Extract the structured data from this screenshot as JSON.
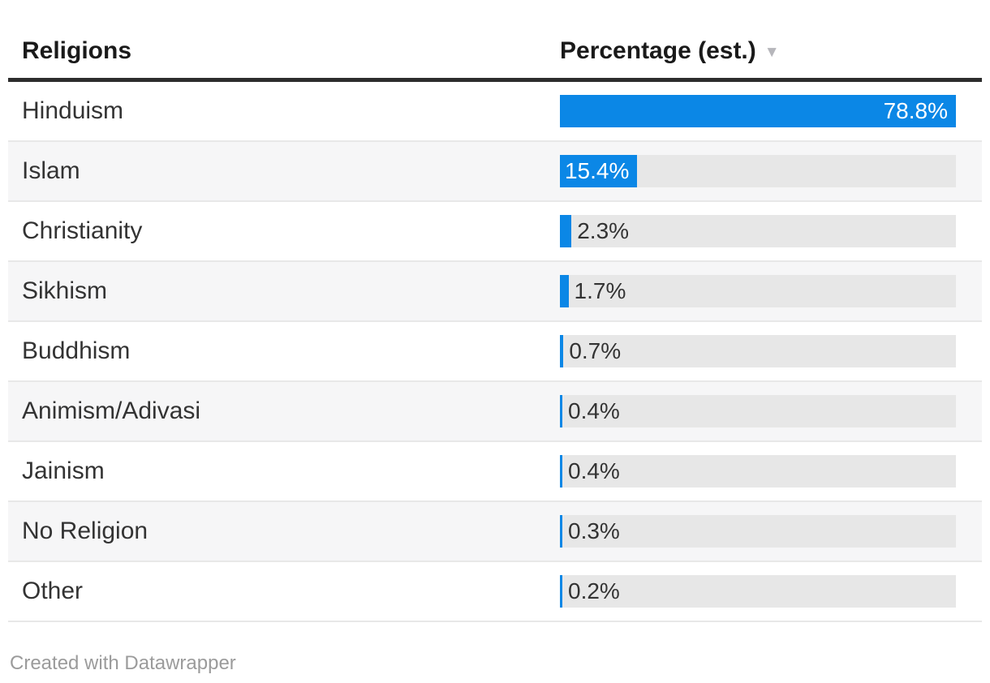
{
  "table": {
    "header": {
      "religions_label": "Religions",
      "percentage_label": "Percentage (est.)",
      "sort_icon": "▼",
      "sort_state": "descending"
    },
    "rows": [
      {
        "religion": "Hinduism",
        "percentage": "78.8%",
        "value": 78.8
      },
      {
        "religion": "Islam",
        "percentage": "15.4%",
        "value": 15.4
      },
      {
        "religion": "Christianity",
        "percentage": "2.3%",
        "value": 2.3
      },
      {
        "religion": "Sikhism",
        "percentage": "1.7%",
        "value": 1.7
      },
      {
        "religion": "Buddhism",
        "percentage": "0.7%",
        "value": 0.7
      },
      {
        "religion": "Animism/Adivasi",
        "percentage": "0.4%",
        "value": 0.4
      },
      {
        "religion": "Jainism",
        "percentage": "0.4%",
        "value": 0.4
      },
      {
        "religion": "No Religion",
        "percentage": "0.3%",
        "value": 0.3
      },
      {
        "religion": "Other",
        "percentage": "0.2%",
        "value": 0.2
      }
    ]
  },
  "chart_data": {
    "type": "bar",
    "orientation": "horizontal",
    "title": "",
    "xlabel": "Percentage (est.)",
    "ylabel": "Religions",
    "categories": [
      "Hinduism",
      "Islam",
      "Christianity",
      "Sikhism",
      "Buddhism",
      "Animism/Adivasi",
      "Jainism",
      "No Religion",
      "Other"
    ],
    "values": [
      78.8,
      15.4,
      2.3,
      1.7,
      0.7,
      0.4,
      0.4,
      0.3,
      0.2
    ],
    "value_labels": [
      "78.8%",
      "15.4%",
      "2.3%",
      "1.7%",
      "0.7%",
      "0.4%",
      "0.4%",
      "0.3%",
      "0.2%"
    ],
    "xlim": [
      0,
      78.8
    ],
    "sort": "descending",
    "grid": false,
    "legend": false
  },
  "footer": {
    "credit": "Created with Datawrapper"
  },
  "colors": {
    "bar_blue": "#0b87e6",
    "bar_track": "#e7e7e7",
    "zebra_row": "#f6f6f7",
    "row_divider": "#e8e8e8",
    "header_rule": "#2d2d2d",
    "text_dark": "#333333",
    "value_on_bar": "#ffffff",
    "sort_icon": "#b6b6bb",
    "credit_text": "#9b9b9b"
  }
}
